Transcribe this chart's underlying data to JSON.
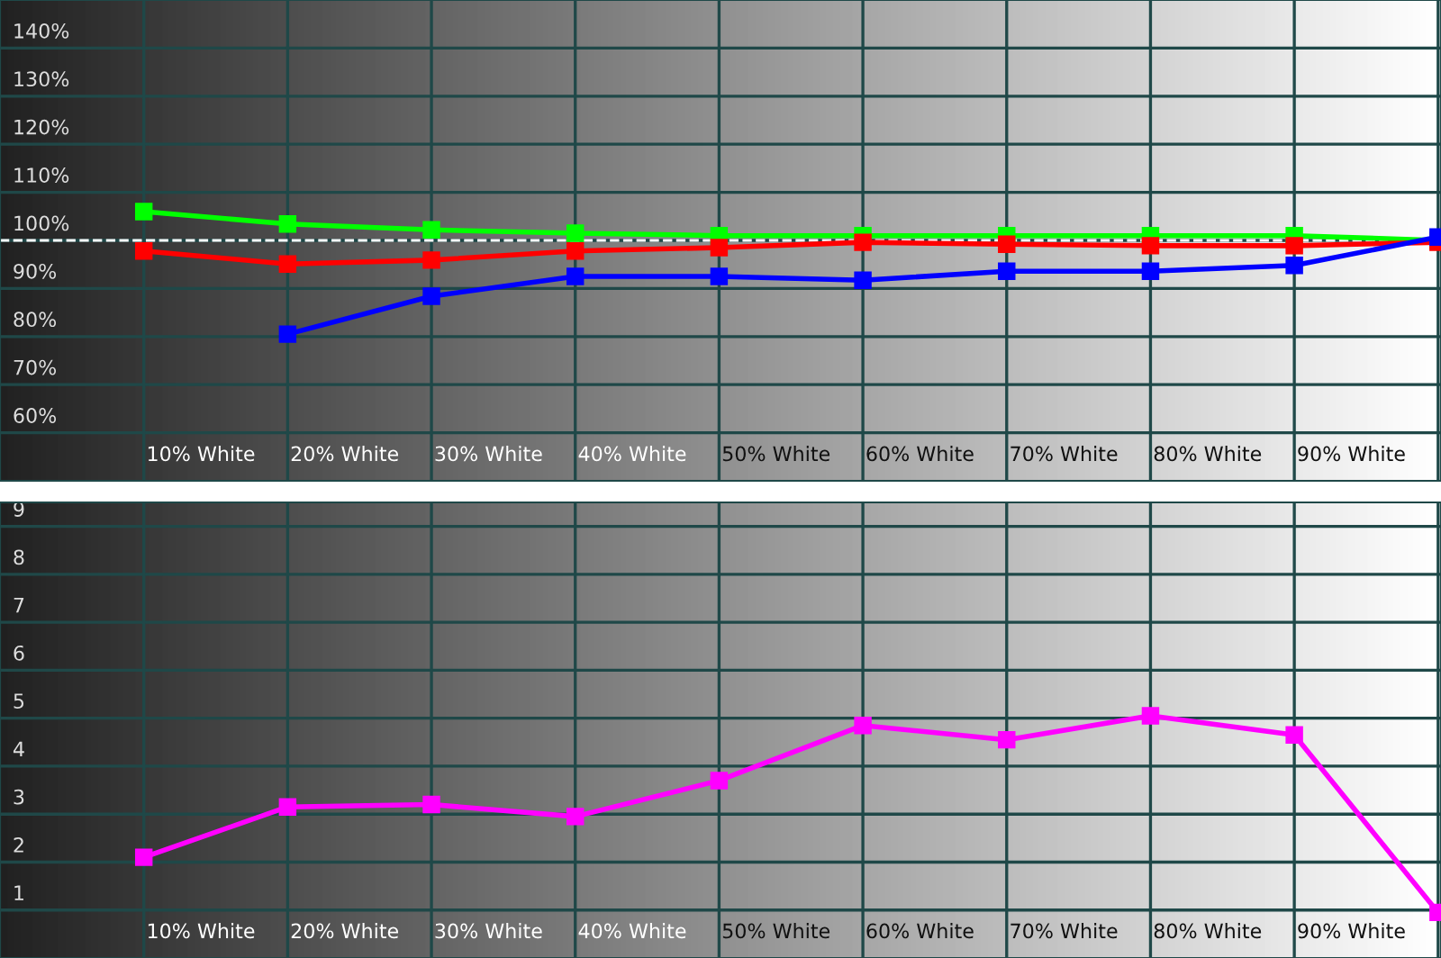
{
  "chart_data": [
    {
      "type": "line",
      "categories": [
        "10% White",
        "20% White",
        "30% White",
        "40% White",
        "50% White",
        "60% White",
        "70% White",
        "80% White",
        "90% White",
        null
      ],
      "series": [
        {
          "color": "#00ff00",
          "values": [
            106,
            103.4,
            102.2,
            101.5,
            101,
            101,
            101,
            101,
            101,
            100
          ]
        },
        {
          "color": "#ff0000",
          "values": [
            97.8,
            95.1,
            95.9,
            97.8,
            98.5,
            99.6,
            99.2,
            98.9,
            98.9,
            99.6
          ]
        },
        {
          "color": "#0000ff",
          "values": [
            null,
            80.5,
            88.4,
            92.5,
            92.5,
            91.7,
            93.6,
            93.6,
            94.8,
            100.7
          ]
        }
      ],
      "ylim": [
        50,
        150
      ],
      "yticks": [
        {
          "value": 60,
          "label": "60%"
        },
        {
          "value": 70,
          "label": "70%"
        },
        {
          "value": 80,
          "label": "80%"
        },
        {
          "value": 90,
          "label": "90%"
        },
        {
          "value": 100,
          "label": "100%"
        },
        {
          "value": 110,
          "label": "110%"
        },
        {
          "value": 120,
          "label": "120%"
        },
        {
          "value": 130,
          "label": "130%"
        },
        {
          "value": 140,
          "label": "140%"
        }
      ],
      "ref_lines": [
        {
          "axis": "y",
          "value": 100,
          "color": "#ffffff",
          "line_style": "dashed"
        }
      ],
      "grid": true,
      "marker": "square",
      "line_style": "solid"
    },
    {
      "type": "line",
      "categories": [
        "10% White",
        "20% White",
        "30% White",
        "40% White",
        "50% White",
        "60% White",
        "70% White",
        "80% White",
        "90% White",
        null
      ],
      "series": [
        {
          "color": "#ff00ff",
          "values": [
            2.1,
            3.15,
            3.2,
            2.95,
            3.7,
            4.85,
            4.55,
            5.05,
            4.65,
            0.95
          ]
        }
      ],
      "ylim": [
        0,
        9.5
      ],
      "yticks": [
        1,
        2,
        3,
        4,
        5,
        6,
        7,
        8,
        9
      ],
      "grid": true,
      "marker": "square",
      "line_style": "solid"
    }
  ]
}
